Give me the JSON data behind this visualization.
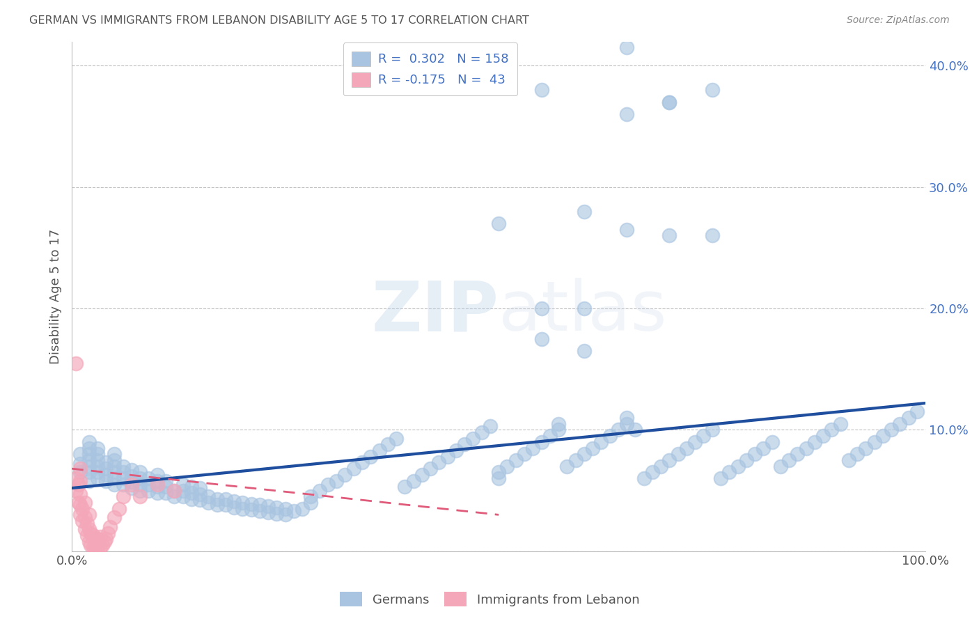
{
  "title": "GERMAN VS IMMIGRANTS FROM LEBANON DISABILITY AGE 5 TO 17 CORRELATION CHART",
  "source": "Source: ZipAtlas.com",
  "ylabel": "Disability Age 5 to 17",
  "xlim": [
    0,
    1.0
  ],
  "ylim": [
    0,
    0.42
  ],
  "yticks": [
    0.0,
    0.1,
    0.2,
    0.3,
    0.4
  ],
  "xtick_labels": [
    "0.0%",
    "100.0%"
  ],
  "german_R": 0.302,
  "german_N": 158,
  "lebanon_R": -0.175,
  "lebanon_N": 43,
  "german_color": "#a8c4e0",
  "lebanon_color": "#f4a7b9",
  "german_line_color": "#1f4e9e",
  "lebanon_line_color": "#e05a7a",
  "watermark": "ZIPatlas",
  "background_color": "#ffffff",
  "grid_color": "#c0c0c0",
  "title_color": "#555555",
  "axis_label_color": "#555555",
  "german_scatter_x": [
    0.01,
    0.01,
    0.01,
    0.02,
    0.02,
    0.02,
    0.02,
    0.02,
    0.02,
    0.02,
    0.03,
    0.03,
    0.03,
    0.03,
    0.03,
    0.03,
    0.04,
    0.04,
    0.04,
    0.04,
    0.05,
    0.05,
    0.05,
    0.05,
    0.05,
    0.05,
    0.06,
    0.06,
    0.06,
    0.06,
    0.07,
    0.07,
    0.07,
    0.07,
    0.08,
    0.08,
    0.08,
    0.08,
    0.09,
    0.09,
    0.09,
    0.1,
    0.1,
    0.1,
    0.1,
    0.11,
    0.11,
    0.11,
    0.12,
    0.12,
    0.13,
    0.13,
    0.13,
    0.14,
    0.14,
    0.14,
    0.15,
    0.15,
    0.15,
    0.16,
    0.16,
    0.17,
    0.17,
    0.18,
    0.18,
    0.19,
    0.19,
    0.2,
    0.2,
    0.21,
    0.21,
    0.22,
    0.22,
    0.23,
    0.23,
    0.24,
    0.24,
    0.25,
    0.25,
    0.26,
    0.27,
    0.28,
    0.28,
    0.29,
    0.3,
    0.31,
    0.32,
    0.33,
    0.34,
    0.35,
    0.36,
    0.37,
    0.38,
    0.39,
    0.4,
    0.41,
    0.42,
    0.43,
    0.44,
    0.45,
    0.46,
    0.47,
    0.48,
    0.49,
    0.5,
    0.5,
    0.51,
    0.52,
    0.53,
    0.54,
    0.55,
    0.56,
    0.57,
    0.57,
    0.58,
    0.59,
    0.6,
    0.61,
    0.62,
    0.63,
    0.64,
    0.65,
    0.65,
    0.66,
    0.67,
    0.68,
    0.69,
    0.7,
    0.71,
    0.72,
    0.73,
    0.74,
    0.75,
    0.76,
    0.77,
    0.78,
    0.79,
    0.8,
    0.81,
    0.82,
    0.83,
    0.84,
    0.85,
    0.86,
    0.87,
    0.88,
    0.89,
    0.9,
    0.91,
    0.92,
    0.93,
    0.94,
    0.95,
    0.96,
    0.97,
    0.98,
    0.99,
    0.55,
    0.6,
    0.65,
    0.7,
    0.75,
    0.5,
    0.6,
    0.65,
    0.7,
    0.55,
    0.75,
    0.65,
    0.7,
    0.55,
    0.6
  ],
  "german_scatter_y": [
    0.065,
    0.072,
    0.08,
    0.058,
    0.065,
    0.07,
    0.075,
    0.08,
    0.085,
    0.09,
    0.06,
    0.065,
    0.07,
    0.075,
    0.08,
    0.085,
    0.058,
    0.063,
    0.068,
    0.073,
    0.055,
    0.06,
    0.065,
    0.07,
    0.075,
    0.08,
    0.055,
    0.06,
    0.065,
    0.07,
    0.052,
    0.057,
    0.062,
    0.067,
    0.05,
    0.055,
    0.06,
    0.065,
    0.05,
    0.055,
    0.06,
    0.048,
    0.053,
    0.058,
    0.063,
    0.048,
    0.053,
    0.058,
    0.045,
    0.05,
    0.045,
    0.05,
    0.055,
    0.043,
    0.048,
    0.053,
    0.042,
    0.047,
    0.052,
    0.04,
    0.045,
    0.038,
    0.043,
    0.038,
    0.043,
    0.036,
    0.041,
    0.035,
    0.04,
    0.034,
    0.039,
    0.033,
    0.038,
    0.032,
    0.037,
    0.031,
    0.036,
    0.03,
    0.035,
    0.033,
    0.035,
    0.04,
    0.045,
    0.05,
    0.055,
    0.058,
    0.063,
    0.068,
    0.073,
    0.078,
    0.083,
    0.088,
    0.093,
    0.053,
    0.058,
    0.063,
    0.068,
    0.073,
    0.078,
    0.083,
    0.088,
    0.093,
    0.098,
    0.103,
    0.06,
    0.065,
    0.07,
    0.075,
    0.08,
    0.085,
    0.09,
    0.095,
    0.1,
    0.105,
    0.07,
    0.075,
    0.08,
    0.085,
    0.09,
    0.095,
    0.1,
    0.105,
    0.11,
    0.1,
    0.06,
    0.065,
    0.07,
    0.075,
    0.08,
    0.085,
    0.09,
    0.095,
    0.1,
    0.06,
    0.065,
    0.07,
    0.075,
    0.08,
    0.085,
    0.09,
    0.07,
    0.075,
    0.08,
    0.085,
    0.09,
    0.095,
    0.1,
    0.105,
    0.075,
    0.08,
    0.085,
    0.09,
    0.095,
    0.1,
    0.105,
    0.11,
    0.115,
    0.175,
    0.2,
    0.265,
    0.26,
    0.26,
    0.27,
    0.28,
    0.36,
    0.37,
    0.38,
    0.38,
    0.415,
    0.37,
    0.2,
    0.165
  ],
  "lebanon_scatter_x": [
    0.005,
    0.005,
    0.008,
    0.008,
    0.01,
    0.01,
    0.01,
    0.01,
    0.01,
    0.012,
    0.012,
    0.015,
    0.015,
    0.015,
    0.018,
    0.018,
    0.02,
    0.02,
    0.02,
    0.022,
    0.022,
    0.025,
    0.025,
    0.028,
    0.028,
    0.03,
    0.03,
    0.033,
    0.033,
    0.036,
    0.038,
    0.04,
    0.042,
    0.045,
    0.05,
    0.055,
    0.06,
    0.07,
    0.08,
    0.1,
    0.12,
    0.005
  ],
  "lebanon_scatter_y": [
    0.05,
    0.06,
    0.04,
    0.055,
    0.03,
    0.038,
    0.047,
    0.058,
    0.068,
    0.025,
    0.035,
    0.018,
    0.028,
    0.04,
    0.013,
    0.023,
    0.008,
    0.018,
    0.03,
    0.005,
    0.015,
    0.003,
    0.013,
    0.002,
    0.01,
    0.002,
    0.01,
    0.003,
    0.012,
    0.005,
    0.008,
    0.01,
    0.015,
    0.02,
    0.028,
    0.035,
    0.045,
    0.055,
    0.045,
    0.055,
    0.05,
    0.155
  ],
  "german_line_x0": 0.0,
  "german_line_y0": 0.052,
  "german_line_x1": 1.0,
  "german_line_y1": 0.122,
  "lebanon_line_x0": 0.0,
  "lebanon_line_y0": 0.068,
  "lebanon_line_x1": 0.5,
  "lebanon_line_y1": 0.03
}
